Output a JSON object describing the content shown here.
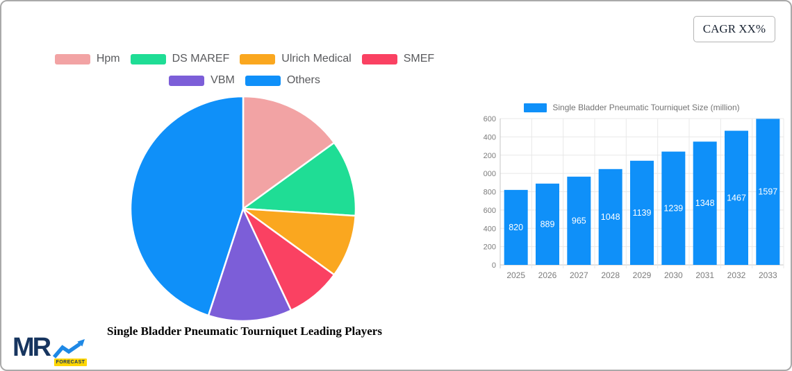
{
  "header": {
    "cagr_label": "CAGR XX%"
  },
  "logo": {
    "text": "MR",
    "badge": "FORECAST",
    "navy": "#17355f",
    "arrow_blue": "#1e88e5",
    "badge_yellow": "#ffd600"
  },
  "chart_data": [
    {
      "type": "pie",
      "title": "Single Bladder Pneumatic Tourniquet Leading Players",
      "legend_position": "top",
      "unit": "percent-share",
      "start_angle_deg": 0,
      "series": [
        {
          "name": "Hpm",
          "value": 15,
          "color": "#f2a3a4"
        },
        {
          "name": "DS MAREF",
          "value": 11,
          "color": "#1fdd95"
        },
        {
          "name": "Ulrich Medical",
          "value": 9,
          "color": "#faa71f"
        },
        {
          "name": "SMEF",
          "value": 8,
          "color": "#fa4162"
        },
        {
          "name": "VBM",
          "value": 12,
          "color": "#7c5ed8"
        },
        {
          "name": "Others",
          "value": 45,
          "color": "#0f90f9"
        }
      ]
    },
    {
      "type": "bar",
      "series_label": "Single Bladder Pneumatic Tourniquet Size (million)",
      "categories": [
        "2025",
        "2026",
        "2027",
        "2028",
        "2029",
        "2030",
        "2031",
        "2032",
        "2033"
      ],
      "values": [
        820,
        889,
        965,
        1048,
        1139,
        1239,
        1348,
        1467,
        1597
      ],
      "bar_color": "#0f90f9",
      "value_label_color": "#ffffff",
      "ylim": [
        0,
        1600
      ],
      "ytick_step": 200,
      "grid": true,
      "axis_color": "#c6c6c6",
      "grid_color": "#e8e8e8",
      "tick_label_color": "#7b7b7b",
      "legend_position": "top"
    }
  ]
}
